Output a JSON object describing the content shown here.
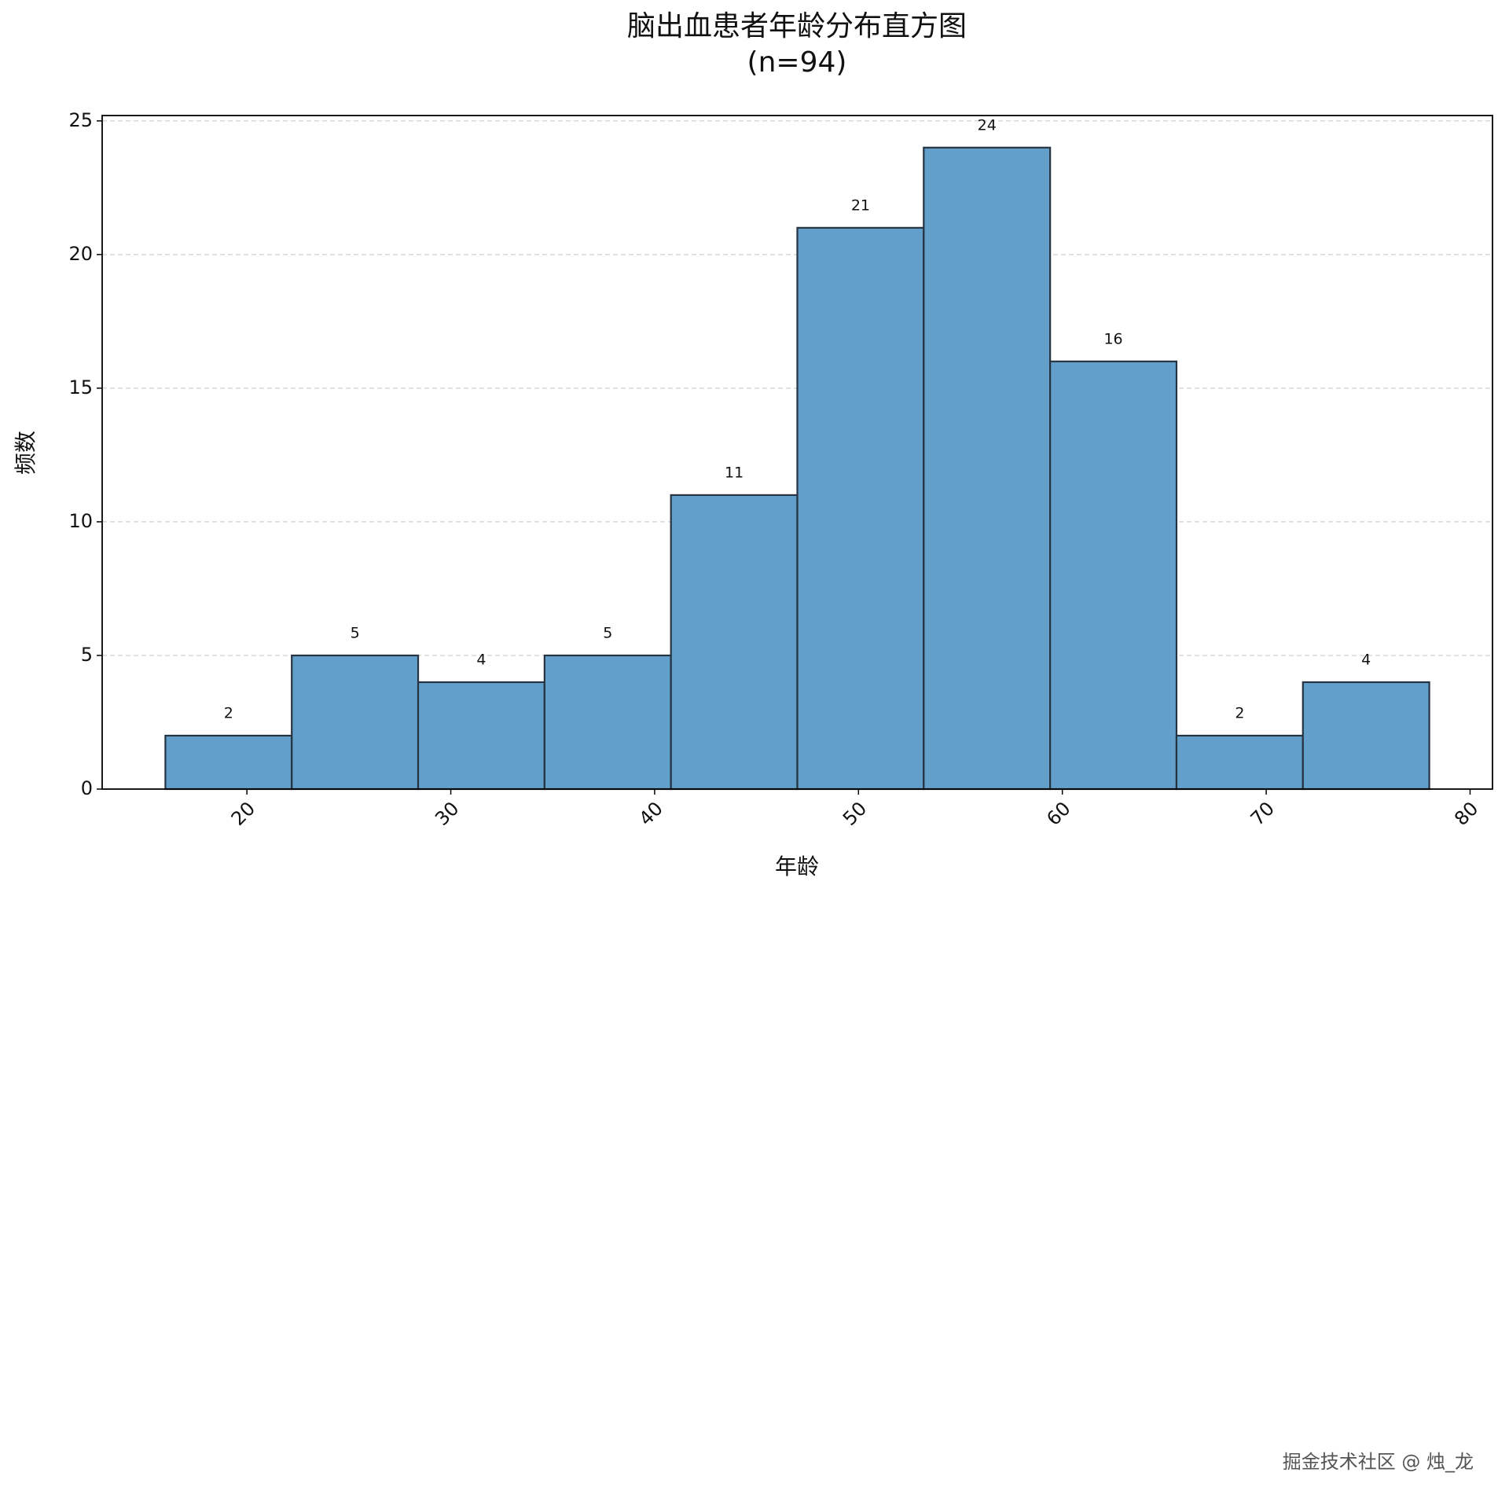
{
  "chart_data": {
    "type": "histogram",
    "title": "脑出血患者年龄分布直方图",
    "subtitle": "(n=94)",
    "xlabel": "年龄",
    "ylabel": "频数",
    "bins": [
      16,
      22.2,
      28.4,
      34.6,
      40.8,
      47,
      53.2,
      59.4,
      65.6,
      71.8,
      78
    ],
    "values": [
      2,
      5,
      4,
      5,
      11,
      21,
      24,
      16,
      2,
      4
    ],
    "color": "#62a0cb",
    "edgecolor": "#263340",
    "xlim": [
      12.9,
      81.1
    ],
    "xticks": [
      20,
      30,
      40,
      50,
      60,
      70,
      80
    ],
    "ylim": [
      0,
      25.2
    ],
    "yticks": [
      0,
      5,
      10,
      15,
      20,
      25
    ],
    "grid": true,
    "watermark": "掘金技术社区 @ 烛_龙"
  }
}
